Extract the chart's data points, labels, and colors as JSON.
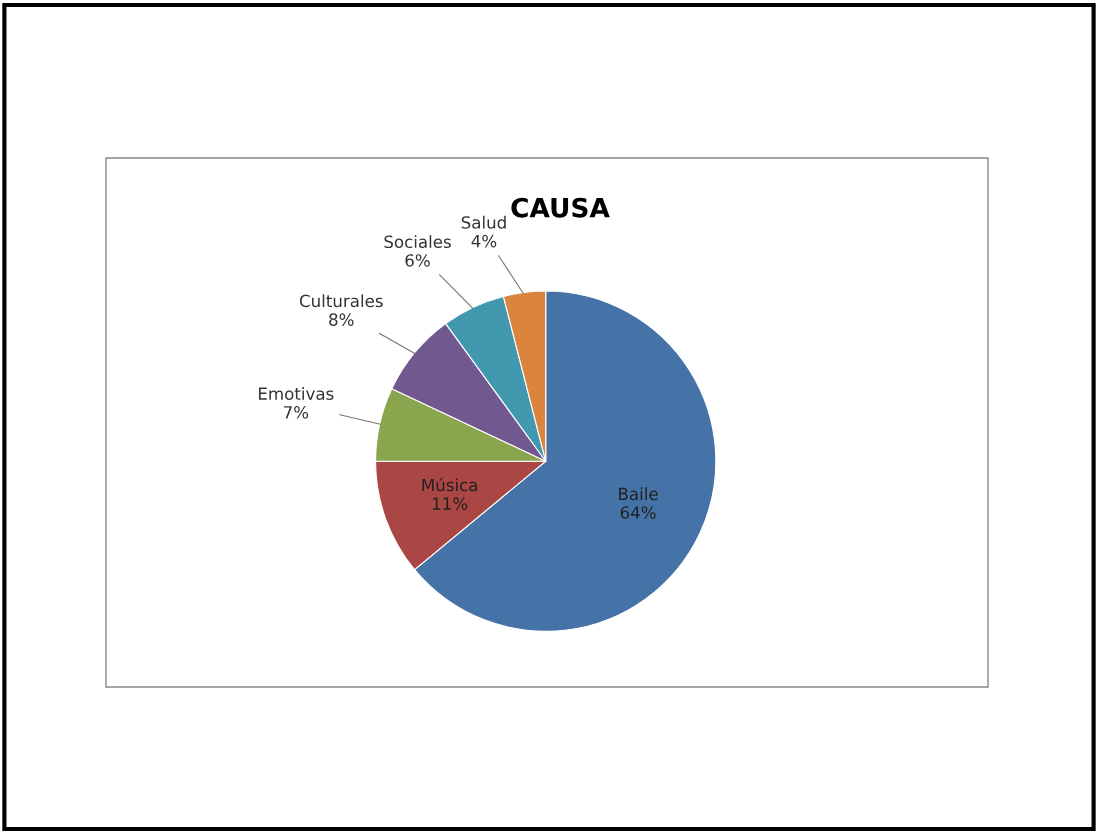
{
  "chart_data": {
    "type": "pie",
    "title": "CAUSA",
    "categories": [
      "Baile",
      "Música",
      "Emotivas",
      "Culturales",
      "Sociales",
      "Salud"
    ],
    "values": [
      64,
      11,
      7,
      8,
      6,
      4
    ],
    "value_labels": [
      "64%",
      "11%",
      "7%",
      "8%",
      "6%",
      "4%"
    ],
    "colors": [
      "#4572a7",
      "#aa4643",
      "#89a54e",
      "#71588f",
      "#4198af",
      "#db843d"
    ],
    "legend": false
  }
}
